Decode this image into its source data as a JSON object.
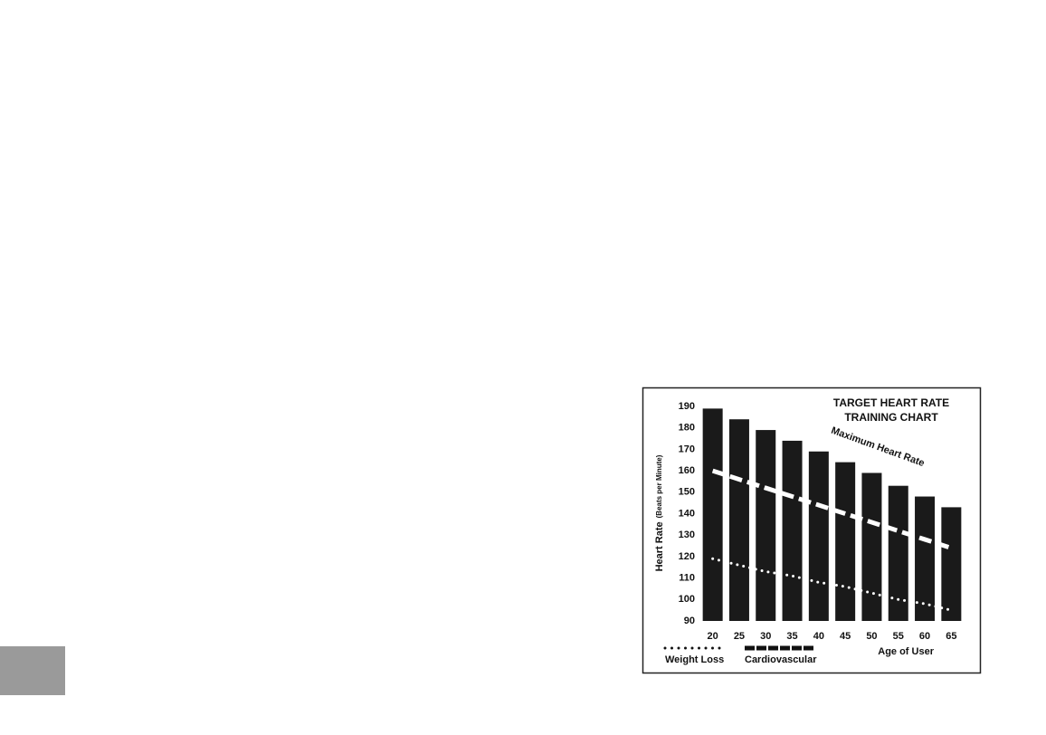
{
  "chart_data": {
    "type": "bar",
    "title": [
      "TARGET HEART RATE",
      "TRAINING CHART"
    ],
    "y_label": [
      "Heart Rate",
      "(Beats per Minute)"
    ],
    "x_label": "Age of User",
    "categories": [
      "20",
      "25",
      "30",
      "35",
      "40",
      "45",
      "50",
      "55",
      "60",
      "65"
    ],
    "ylim": [
      90,
      190
    ],
    "yticks": [
      90,
      100,
      110,
      120,
      130,
      140,
      150,
      160,
      170,
      180,
      190
    ],
    "series": [
      {
        "name": "Maximum Heart Rate",
        "color": "#1a1a1a",
        "style": "bar",
        "values": [
          189,
          184,
          179,
          174,
          169,
          164,
          159,
          153,
          148,
          143
        ]
      },
      {
        "name": "Cardiovascular",
        "color": "#ffffff",
        "style": "dashed",
        "values": [
          160,
          156,
          152,
          148,
          144,
          140,
          136,
          132,
          128,
          124
        ]
      },
      {
        "name": "Weight Loss",
        "color": "#ffffff",
        "style": "dotted",
        "values": [
          119,
          116,
          113,
          111,
          108,
          106,
          103,
          100,
          98,
          95
        ]
      }
    ],
    "grid": false
  }
}
